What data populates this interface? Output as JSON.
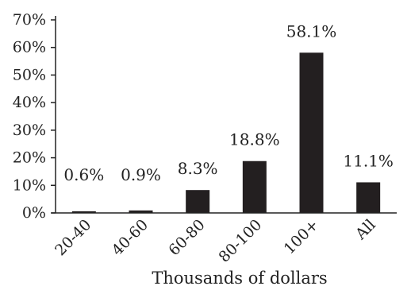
{
  "chart_data": {
    "type": "bar",
    "categories": [
      "20-40",
      "40-60",
      "60-80",
      "80-100",
      "100+",
      "All"
    ],
    "values": [
      0.6,
      0.9,
      8.3,
      18.8,
      58.1,
      11.1
    ],
    "data_labels": [
      "0.6%",
      "0.9%",
      "8.3%",
      "18.8%",
      "58.1%",
      "11.1%"
    ],
    "xlabel": "Thousands of dollars",
    "ylabel": "",
    "ylim": [
      0,
      70
    ],
    "yticks": [
      0,
      10,
      20,
      30,
      40,
      50,
      60,
      70
    ],
    "ytick_labels": [
      "0%",
      "10%",
      "20%",
      "30%",
      "40%",
      "50%",
      "60%",
      "70%"
    ],
    "grid": false,
    "bar_color": "#231f20"
  }
}
